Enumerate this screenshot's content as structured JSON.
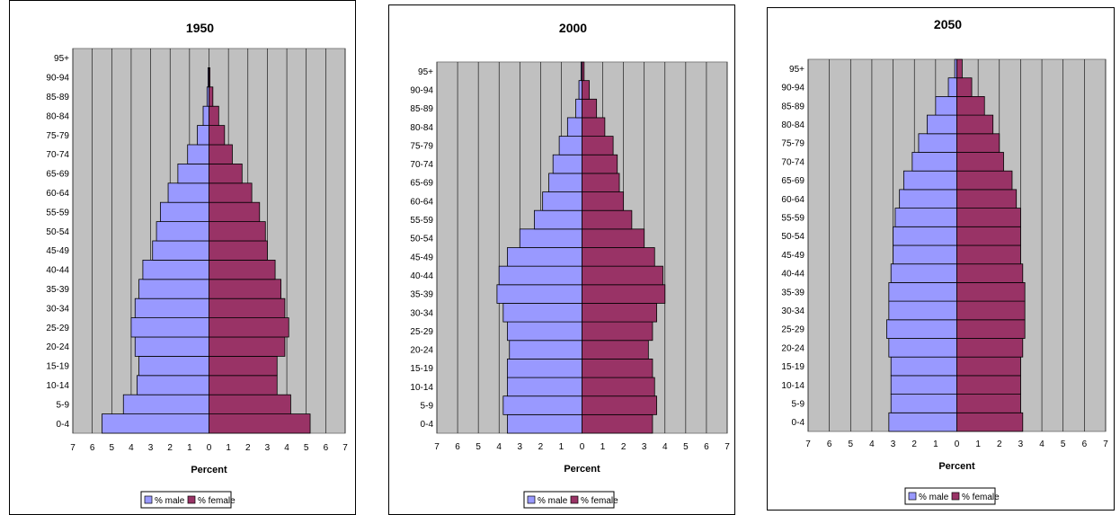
{
  "chart_data": [
    {
      "type": "bar",
      "title": "1950",
      "categories": [
        "0-4",
        "5-9",
        "10-14",
        "15-19",
        "20-24",
        "25-29",
        "30-34",
        "35-39",
        "40-44",
        "45-49",
        "50-54",
        "55-59",
        "60-64",
        "65-69",
        "70-74",
        "75-79",
        "80-84",
        "85-89",
        "90-94",
        "95+"
      ],
      "series": [
        {
          "name": "% male",
          "values": [
            5.5,
            4.4,
            3.7,
            3.6,
            3.8,
            4.0,
            3.8,
            3.6,
            3.4,
            2.9,
            2.7,
            2.5,
            2.1,
            1.6,
            1.1,
            0.6,
            0.3,
            0.1,
            0.05,
            0
          ]
        },
        {
          "name": "% female",
          "values": [
            5.2,
            4.2,
            3.5,
            3.5,
            3.9,
            4.1,
            3.9,
            3.7,
            3.4,
            3.0,
            2.9,
            2.6,
            2.2,
            1.7,
            1.2,
            0.8,
            0.5,
            0.2,
            0.05,
            0
          ]
        }
      ],
      "xlabel": "Percent",
      "xlim": [
        -7,
        7
      ],
      "xticks": [
        "7",
        "6",
        "5",
        "4",
        "3",
        "2",
        "1",
        "0",
        "1",
        "2",
        "3",
        "4",
        "5",
        "6",
        "7"
      ],
      "colors": {
        "male": "#9999ff",
        "female": "#993366",
        "plot_bg": "#c0c0c0"
      },
      "legend_position": "bottom",
      "grid": true
    },
    {
      "type": "bar",
      "title": "2000",
      "categories": [
        "0-4",
        "5-9",
        "10-14",
        "15-19",
        "20-24",
        "25-29",
        "30-34",
        "35-39",
        "40-44",
        "45-49",
        "50-54",
        "55-59",
        "60-64",
        "65-69",
        "70-74",
        "75-79",
        "80-84",
        "85-89",
        "90-94",
        "95+"
      ],
      "series": [
        {
          "name": "% male",
          "values": [
            3.6,
            3.8,
            3.6,
            3.6,
            3.5,
            3.6,
            3.8,
            4.1,
            4.0,
            3.6,
            3.0,
            2.3,
            1.9,
            1.6,
            1.4,
            1.1,
            0.7,
            0.3,
            0.15,
            0.05
          ]
        },
        {
          "name": "% female",
          "values": [
            3.4,
            3.6,
            3.5,
            3.4,
            3.2,
            3.4,
            3.6,
            4.0,
            3.9,
            3.5,
            3.0,
            2.4,
            2.0,
            1.8,
            1.7,
            1.5,
            1.1,
            0.7,
            0.35,
            0.1
          ]
        }
      ],
      "xlabel": "Percent",
      "xlim": [
        -7,
        7
      ],
      "xticks": [
        "7",
        "6",
        "5",
        "4",
        "3",
        "2",
        "1",
        "0",
        "1",
        "2",
        "3",
        "4",
        "5",
        "6",
        "7"
      ],
      "colors": {
        "male": "#9999ff",
        "female": "#993366",
        "plot_bg": "#c0c0c0"
      },
      "legend_position": "bottom",
      "grid": true
    },
    {
      "type": "bar",
      "title": "2050",
      "categories": [
        "0-4",
        "5-9",
        "10-14",
        "15-19",
        "20-24",
        "25-29",
        "30-34",
        "35-39",
        "40-44",
        "45-49",
        "50-54",
        "55-59",
        "60-64",
        "65-69",
        "70-74",
        "75-79",
        "80-84",
        "85-89",
        "90-94",
        "95+"
      ],
      "series": [
        {
          "name": "% male",
          "values": [
            3.2,
            3.1,
            3.1,
            3.1,
            3.2,
            3.3,
            3.2,
            3.2,
            3.1,
            3.0,
            3.0,
            2.9,
            2.7,
            2.5,
            2.1,
            1.8,
            1.4,
            1.0,
            0.4,
            0.1
          ]
        },
        {
          "name": "% female",
          "values": [
            3.1,
            3.0,
            3.0,
            3.0,
            3.1,
            3.2,
            3.2,
            3.2,
            3.1,
            3.0,
            3.0,
            3.0,
            2.8,
            2.6,
            2.2,
            2.0,
            1.7,
            1.3,
            0.7,
            0.25
          ]
        }
      ],
      "xlabel": "Percent",
      "xlim": [
        -7,
        7
      ],
      "xticks": [
        "7",
        "6",
        "5",
        "4",
        "3",
        "2",
        "1",
        "0",
        "1",
        "2",
        "3",
        "4",
        "5",
        "6",
        "7"
      ],
      "colors": {
        "male": "#9999ff",
        "female": "#993366",
        "plot_bg": "#c0c0c0"
      },
      "legend_position": "bottom",
      "grid": true
    }
  ]
}
